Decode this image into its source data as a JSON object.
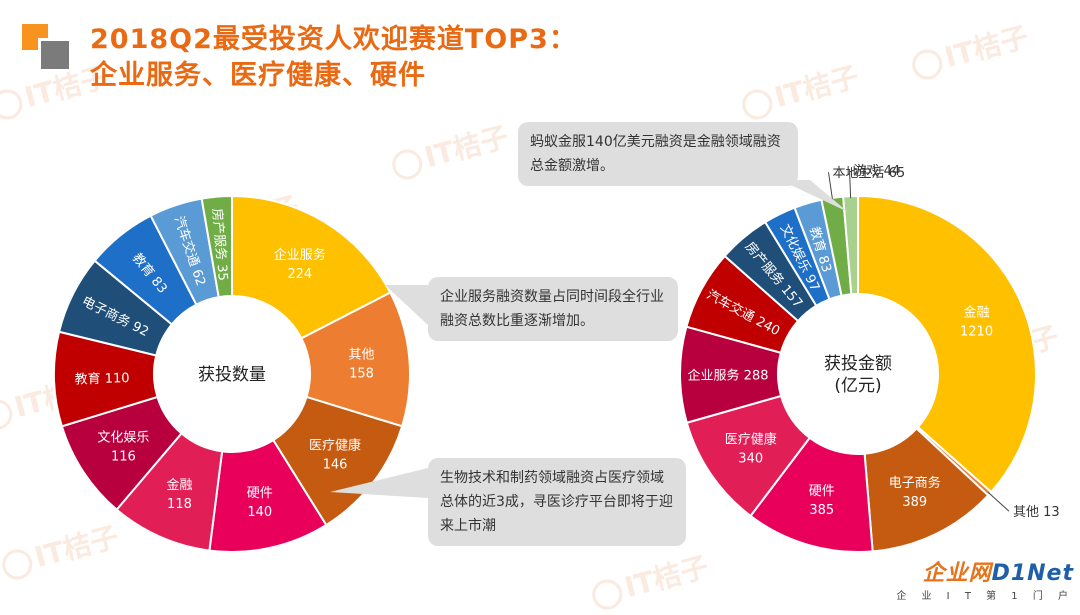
{
  "title": {
    "line1": "2018Q2最受投资人欢迎赛道TOP3：",
    "line2": "企业服务、医疗健康、硬件"
  },
  "watermark_text": "IT桔子",
  "brand": {
    "logo_text_a": "企业网",
    "logo_text_b": "D1Net",
    "tagline": "企 业 I T 第 1 门 户"
  },
  "callouts": {
    "count_top": "企业服务融资数量占同时间段全行业融资总数比重逐渐增加。",
    "count_bottom": "生物技术和制药领域融资占医疗领域总体的近3成，寻医诊疗平台即将于迎来上市潮",
    "amount_top": "蚂蚁金服140亿美元融资是金融领域融资总金额激增。"
  },
  "colors": {
    "title": "#ea6a14",
    "callout_bg": "#dedede"
  },
  "chart_data": [
    {
      "type": "pie",
      "donut": true,
      "center_label": [
        "获投数量"
      ],
      "start": "top, clockwise",
      "slices": [
        {
          "label": "企业服务",
          "value": 224,
          "color": "#ffc000"
        },
        {
          "label": "其他",
          "value": 158,
          "color": "#ed7d31"
        },
        {
          "label": "医疗健康",
          "value": 146,
          "color": "#c55a11"
        },
        {
          "label": "硬件",
          "value": 140,
          "color": "#e8005a"
        },
        {
          "label": "金融",
          "value": 118,
          "color": "#e21e56"
        },
        {
          "label": "文化娱乐",
          "value": 116,
          "color": "#b8003e"
        },
        {
          "label": "教育",
          "value": 110,
          "color": "#c00000"
        },
        {
          "label": "电子商务",
          "value": 92,
          "color": "#1f4e79"
        },
        {
          "label": "教育",
          "value": 83,
          "color": "#1e6fc8"
        },
        {
          "label": "汽车交通",
          "value": 62,
          "color": "#5b9bd5"
        },
        {
          "label": "房产服务",
          "value": 35,
          "color": "#70ad47"
        }
      ]
    },
    {
      "type": "pie",
      "donut": true,
      "center_label": [
        "获投金额",
        "(亿元)"
      ],
      "start": "top, clockwise",
      "slices": [
        {
          "label": "金融",
          "value": 1210,
          "color": "#ffc000"
        },
        {
          "label": "其他",
          "value": 13,
          "color": "#ed7d31"
        },
        {
          "label": "电子商务",
          "value": 389,
          "color": "#c55a11"
        },
        {
          "label": "硬件",
          "value": 385,
          "color": "#e8005a"
        },
        {
          "label": "医疗健康",
          "value": 340,
          "color": "#e21e56"
        },
        {
          "label": "企业服务",
          "value": 288,
          "color": "#b8003e"
        },
        {
          "label": "汽车交通",
          "value": 240,
          "color": "#c00000"
        },
        {
          "label": "房产服务",
          "value": 157,
          "color": "#1f4e79"
        },
        {
          "label": "文化娱乐",
          "value": 97,
          "color": "#1e6fc8"
        },
        {
          "label": "教育",
          "value": 83,
          "color": "#5b9bd5"
        },
        {
          "label": "本地生活",
          "value": 65,
          "color": "#70ad47"
        },
        {
          "label": "游戏",
          "value": 44,
          "color": "#a9d18e"
        }
      ]
    }
  ]
}
